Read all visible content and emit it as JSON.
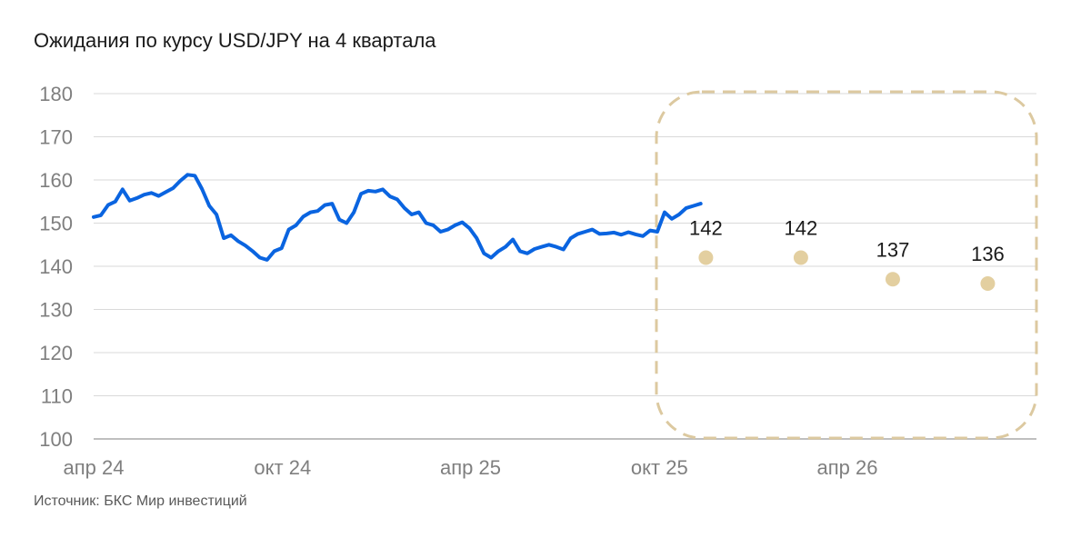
{
  "title": "Ожидания по курсу USD/JPY на 4 квартала",
  "source": "Источник: БКС Мир инвестиций",
  "colors": {
    "actual_line": "#0a64e0",
    "forecast_point": "#e3cfa0",
    "forecast_frame": "#dcc9a0",
    "grid": "#d9d9d9",
    "tick_text": "#7f7f7f"
  },
  "chart_data": {
    "type": "line",
    "title": "Ожидания по курсу USD/JPY на 4 квартала",
    "xlabel": "",
    "ylabel": "",
    "ylim": [
      100,
      180
    ],
    "yticks": [
      100,
      110,
      120,
      130,
      140,
      150,
      160,
      170,
      180
    ],
    "xlim": [
      "2024-04-01",
      "2026-12-31"
    ],
    "xticks": [
      {
        "date": "2024-04-01",
        "label": "апр 24"
      },
      {
        "date": "2024-10-01",
        "label": "окт 24"
      },
      {
        "date": "2025-04-01",
        "label": "апр 25"
      },
      {
        "date": "2025-10-01",
        "label": "окт 25"
      },
      {
        "date": "2026-04-01",
        "label": "апр 26"
      }
    ],
    "grid": true,
    "legend": "none",
    "series": [
      {
        "kind": "line",
        "points": [
          [
            "2024-04-01",
            151.4
          ],
          [
            "2024-04-08",
            151.8
          ],
          [
            "2024-04-15",
            154.2
          ],
          [
            "2024-04-22",
            155.0
          ],
          [
            "2024-04-29",
            157.8
          ],
          [
            "2024-05-06",
            155.2
          ],
          [
            "2024-05-13",
            155.8
          ],
          [
            "2024-05-20",
            156.6
          ],
          [
            "2024-05-27",
            157.0
          ],
          [
            "2024-06-03",
            156.3
          ],
          [
            "2024-06-10",
            157.2
          ],
          [
            "2024-06-17",
            158.1
          ],
          [
            "2024-06-24",
            159.8
          ],
          [
            "2024-07-01",
            161.2
          ],
          [
            "2024-07-08",
            161.0
          ],
          [
            "2024-07-15",
            157.9
          ],
          [
            "2024-07-22",
            154.0
          ],
          [
            "2024-07-29",
            152.0
          ],
          [
            "2024-08-05",
            146.5
          ],
          [
            "2024-08-12",
            147.2
          ],
          [
            "2024-08-19",
            145.8
          ],
          [
            "2024-08-26",
            144.8
          ],
          [
            "2024-09-02",
            143.5
          ],
          [
            "2024-09-09",
            142.0
          ],
          [
            "2024-09-16",
            141.5
          ],
          [
            "2024-09-23",
            143.5
          ],
          [
            "2024-09-30",
            144.2
          ],
          [
            "2024-10-07",
            148.5
          ],
          [
            "2024-10-14",
            149.5
          ],
          [
            "2024-10-21",
            151.5
          ],
          [
            "2024-10-28",
            152.5
          ],
          [
            "2024-11-04",
            152.8
          ],
          [
            "2024-11-11",
            154.2
          ],
          [
            "2024-11-18",
            154.5
          ],
          [
            "2024-11-25",
            150.8
          ],
          [
            "2024-12-02",
            150.0
          ],
          [
            "2024-12-09",
            152.5
          ],
          [
            "2024-12-16",
            156.8
          ],
          [
            "2024-12-23",
            157.5
          ],
          [
            "2024-12-30",
            157.3
          ],
          [
            "2025-01-06",
            157.8
          ],
          [
            "2025-01-13",
            156.2
          ],
          [
            "2025-01-20",
            155.5
          ],
          [
            "2025-01-27",
            153.5
          ],
          [
            "2025-02-03",
            152.0
          ],
          [
            "2025-02-10",
            152.5
          ],
          [
            "2025-02-17",
            150.0
          ],
          [
            "2025-02-24",
            149.5
          ],
          [
            "2025-03-03",
            148.0
          ],
          [
            "2025-03-10",
            148.5
          ],
          [
            "2025-03-17",
            149.5
          ],
          [
            "2025-03-24",
            150.2
          ],
          [
            "2025-03-31",
            148.8
          ],
          [
            "2025-04-07",
            146.5
          ],
          [
            "2025-04-14",
            143.0
          ],
          [
            "2025-04-21",
            142.0
          ],
          [
            "2025-04-28",
            143.5
          ],
          [
            "2025-05-05",
            144.5
          ],
          [
            "2025-05-12",
            146.2
          ],
          [
            "2025-05-19",
            143.5
          ],
          [
            "2025-05-26",
            143.0
          ],
          [
            "2025-06-02",
            144.0
          ],
          [
            "2025-06-09",
            144.5
          ],
          [
            "2025-06-16",
            145.0
          ],
          [
            "2025-06-23",
            144.5
          ],
          [
            "2025-06-30",
            143.9
          ],
          [
            "2025-07-07",
            146.5
          ],
          [
            "2025-07-14",
            147.5
          ],
          [
            "2025-07-21",
            148.0
          ],
          [
            "2025-07-28",
            148.5
          ],
          [
            "2025-08-04",
            147.5
          ],
          [
            "2025-08-11",
            147.6
          ],
          [
            "2025-08-18",
            147.8
          ],
          [
            "2025-08-25",
            147.3
          ],
          [
            "2025-09-01",
            147.9
          ],
          [
            "2025-09-08",
            147.4
          ],
          [
            "2025-09-15",
            147.0
          ],
          [
            "2025-09-22",
            148.3
          ],
          [
            "2025-09-29",
            148.0
          ],
          [
            "2025-10-06",
            152.5
          ],
          [
            "2025-10-13",
            151.0
          ],
          [
            "2025-10-20",
            152.0
          ],
          [
            "2025-10-27",
            153.5
          ],
          [
            "2025-11-03",
            154.0
          ],
          [
            "2025-11-10",
            154.5
          ]
        ]
      },
      {
        "kind": "points",
        "points": [
          {
            "date": "2025-11-15",
            "value": 142,
            "label": "142"
          },
          {
            "date": "2026-02-15",
            "value": 142,
            "label": "142"
          },
          {
            "date": "2026-05-15",
            "value": 137,
            "label": "137"
          },
          {
            "date": "2026-08-15",
            "value": 136,
            "label": "136"
          }
        ]
      }
    ]
  }
}
